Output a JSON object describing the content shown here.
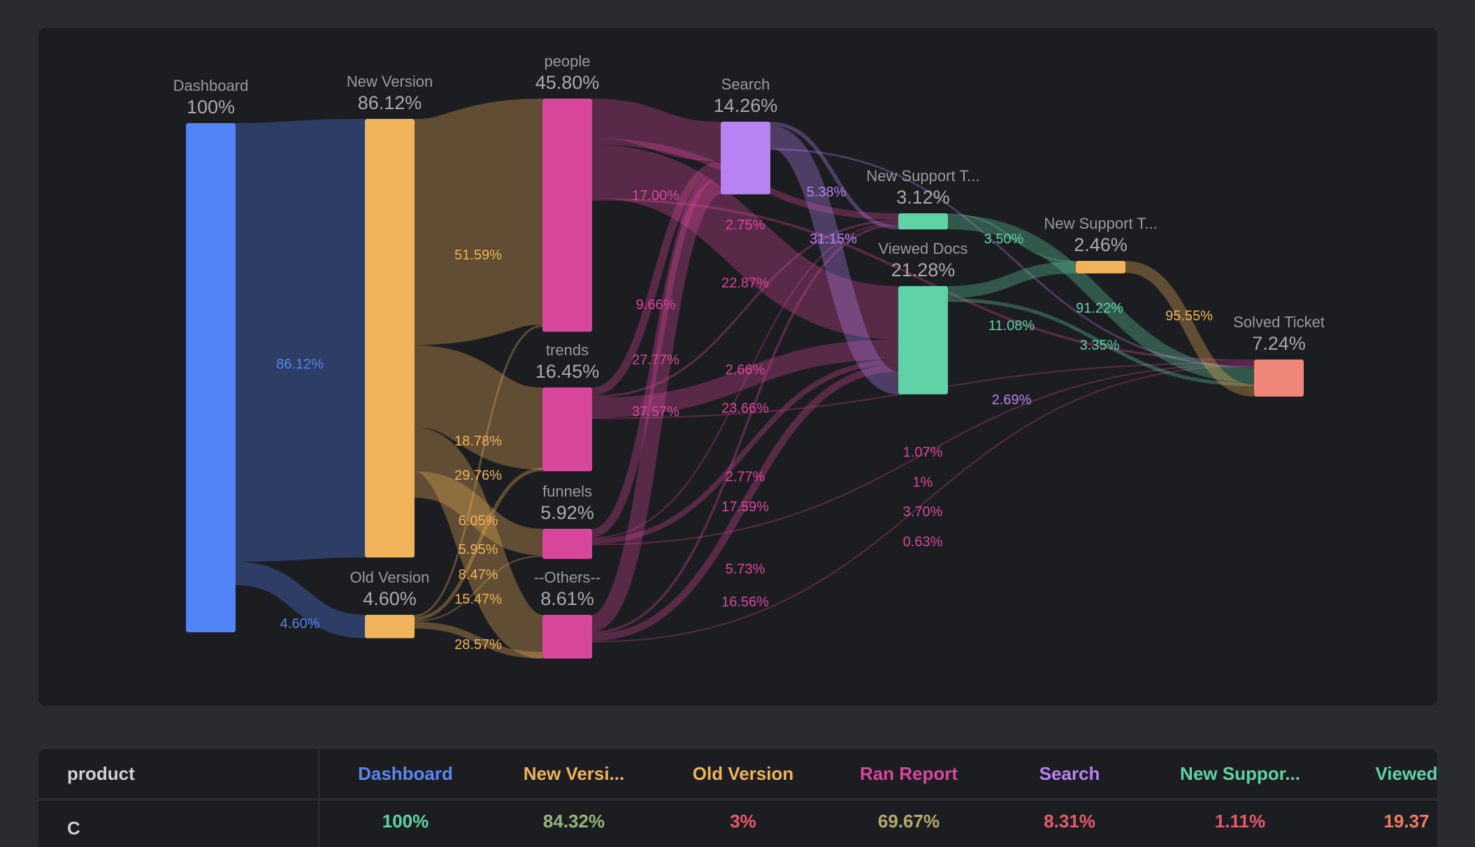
{
  "chart_data": {
    "type": "sankey",
    "nodes": [
      {
        "name": "Dashboard",
        "label": "100%",
        "value": 100,
        "color": "#5384f5"
      },
      {
        "name": "New Version",
        "label": "86.12%",
        "value": 86.12,
        "color": "#f0b35a"
      },
      {
        "name": "Old Version",
        "label": "4.60%",
        "value": 4.6,
        "color": "#f0b35a"
      },
      {
        "name": "people",
        "label": "45.80%",
        "value": 45.8,
        "color": "#d9479d"
      },
      {
        "name": "trends",
        "label": "16.45%",
        "value": 16.45,
        "color": "#d9479d"
      },
      {
        "name": "funnels",
        "label": "5.92%",
        "value": 5.92,
        "color": "#d9479d"
      },
      {
        "name": "--Others--",
        "label": "8.61%",
        "value": 8.61,
        "color": "#d9479d"
      },
      {
        "name": "Search",
        "label": "14.26%",
        "value": 14.26,
        "color": "#b782f2"
      },
      {
        "name": "New Support T...",
        "label": "3.12%",
        "value": 3.12,
        "color": "#5fd3a5"
      },
      {
        "name": "Viewed Docs",
        "label": "21.28%",
        "value": 21.28,
        "color": "#5fd3a5"
      },
      {
        "name": "New Support T...",
        "label": "2.46%",
        "value": 2.46,
        "color": "#f0b35a"
      },
      {
        "name": "Solved Ticket",
        "label": "7.24%",
        "value": 7.24,
        "color": "#ef8677"
      }
    ],
    "links": [
      {
        "source": 0,
        "target": 1,
        "label": "86.12%",
        "value": 86.12
      },
      {
        "source": 0,
        "target": 2,
        "label": "4.60%",
        "value": 4.6
      },
      {
        "source": 1,
        "target": 3,
        "label": "51.59%",
        "value": 51.59
      },
      {
        "source": 1,
        "target": 4,
        "label": "18.78%",
        "value": 18.78
      },
      {
        "source": 1,
        "target": 6,
        "label": "29.76%",
        "value": 29.76
      },
      {
        "source": 1,
        "target": 5,
        "label": "6.05%",
        "value": 6.05
      },
      {
        "source": 2,
        "target": 3,
        "label": "8.47%",
        "value": 8.47
      },
      {
        "source": 2,
        "target": 4,
        "label": "15.47%",
        "value": 15.47
      },
      {
        "source": 2,
        "target": 5,
        "label": "5.95%",
        "value": 5.95
      },
      {
        "source": 2,
        "target": 6,
        "label": "28.57%",
        "value": 28.57
      },
      {
        "source": 3,
        "target": 7,
        "label": "17.00%",
        "value": 17.0
      },
      {
        "source": 3,
        "target": 8,
        "label": "2.75%",
        "value": 2.75
      },
      {
        "source": 3,
        "target": 9,
        "label": "22.87%",
        "value": 22.87
      },
      {
        "source": 3,
        "target": 11,
        "label": "1.07%",
        "value": 1.07
      },
      {
        "source": 4,
        "target": 7,
        "label": "9.66%",
        "value": 9.66
      },
      {
        "source": 4,
        "target": 8,
        "label": "2.66%",
        "value": 2.66
      },
      {
        "source": 4,
        "target": 9,
        "label": "23.66%",
        "value": 23.66
      },
      {
        "source": 4,
        "target": 11,
        "label": "1%",
        "value": 1
      },
      {
        "source": 5,
        "target": 7,
        "label": "27.77%",
        "value": 27.77
      },
      {
        "source": 5,
        "target": 8,
        "label": "2.77%",
        "value": 2.77
      },
      {
        "source": 5,
        "target": 9,
        "label": "17.59%",
        "value": 17.59
      },
      {
        "source": 5,
        "target": 11,
        "label": "3.70%",
        "value": 3.7
      },
      {
        "source": 6,
        "target": 7,
        "label": "37.57%",
        "value": 37.57
      },
      {
        "source": 6,
        "target": 8,
        "label": "5.73%",
        "value": 5.73
      },
      {
        "source": 6,
        "target": 9,
        "label": "16.56%",
        "value": 16.56
      },
      {
        "source": 6,
        "target": 11,
        "label": "0.63%",
        "value": 0.63
      },
      {
        "source": 7,
        "target": 8,
        "label": "5.38%",
        "value": 5.38
      },
      {
        "source": 7,
        "target": 9,
        "label": "31.15%",
        "value": 31.15
      },
      {
        "source": 7,
        "target": 11,
        "label": "2.69%",
        "value": 2.69
      },
      {
        "source": 8,
        "target": 10,
        "label": "3.50%",
        "value": 3.5
      },
      {
        "source": 8,
        "target": 11,
        "label": "91.22%",
        "value": 91.22
      },
      {
        "source": 9,
        "target": 10,
        "label": "11.08%",
        "value": 11.08
      },
      {
        "source": 9,
        "target": 11,
        "label": "3.35%",
        "value": 3.35
      },
      {
        "source": 10,
        "target": 11,
        "label": "95.55%",
        "value": 95.55
      }
    ]
  },
  "table": {
    "first_header": "product",
    "columns": [
      {
        "label": "Dashboard",
        "color": "#5b86f2"
      },
      {
        "label": "New Versi...",
        "color": "#f0b35a"
      },
      {
        "label": "Old Version",
        "color": "#f0b35a"
      },
      {
        "label": "Ran Report",
        "color": "#d9479d"
      },
      {
        "label": "Search",
        "color": "#b782f2"
      },
      {
        "label": "New Suppor...",
        "color": "#5fd3a5"
      },
      {
        "label": "Viewed",
        "color": "#5fd3a5"
      }
    ],
    "row": {
      "label": "C",
      "values": [
        {
          "text": "100%",
          "color": "#5fd3a5"
        },
        {
          "text": "84.32%",
          "color": "#95b57c"
        },
        {
          "text": "3%",
          "color": "#ea5a6a"
        },
        {
          "text": "69.67%",
          "color": "#b5a96e"
        },
        {
          "text": "8.31%",
          "color": "#ea5a6a"
        },
        {
          "text": "1.11%",
          "color": "#ea5a6a"
        },
        {
          "text": "19.37",
          "color": "#ef7a60"
        }
      ]
    }
  }
}
